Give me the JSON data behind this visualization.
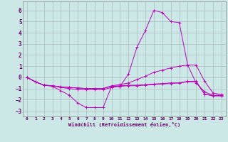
{
  "xlabel": "Windchill (Refroidissement éolien,°C)",
  "background_color": "#cce8e6",
  "grid_color": "#aabbbb",
  "line_color": "#bb00bb",
  "xlim": [
    -0.5,
    23.5
  ],
  "ylim": [
    -3.5,
    6.8
  ],
  "yticks": [
    -3,
    -2,
    -1,
    0,
    1,
    2,
    3,
    4,
    5,
    6
  ],
  "xticks": [
    0,
    1,
    2,
    3,
    4,
    5,
    6,
    7,
    8,
    9,
    10,
    11,
    12,
    13,
    14,
    15,
    16,
    17,
    18,
    19,
    20,
    21,
    22,
    23
  ],
  "series": [
    {
      "x": [
        0,
        1,
        2,
        3,
        4,
        5,
        6,
        7,
        8,
        9,
        10,
        11,
        12,
        13,
        14,
        15,
        16,
        17,
        18,
        19,
        20,
        21,
        22,
        23
      ],
      "y": [
        0.0,
        -0.4,
        -0.7,
        -0.8,
        -1.2,
        -1.6,
        -2.3,
        -2.7,
        -2.7,
        -2.7,
        -0.8,
        -0.8,
        0.3,
        2.7,
        4.2,
        6.0,
        5.8,
        5.0,
        4.9,
        1.1,
        -0.5,
        -1.3,
        -1.6,
        -1.6
      ]
    },
    {
      "x": [
        0,
        1,
        2,
        3,
        4,
        5,
        6,
        7,
        8,
        9,
        10,
        11,
        12,
        13,
        14,
        15,
        16,
        17,
        18,
        19,
        20,
        21,
        22,
        23
      ],
      "y": [
        0.0,
        -0.4,
        -0.7,
        -0.75,
        -0.85,
        -0.9,
        -0.95,
        -1.0,
        -1.0,
        -1.0,
        -0.75,
        -0.65,
        -0.5,
        -0.2,
        0.1,
        0.45,
        0.65,
        0.85,
        1.0,
        1.1,
        1.1,
        -0.35,
        -1.4,
        -1.55
      ]
    },
    {
      "x": [
        0,
        1,
        2,
        3,
        4,
        5,
        6,
        7,
        8,
        9,
        10,
        11,
        12,
        13,
        14,
        15,
        16,
        17,
        18,
        19,
        20,
        21,
        22,
        23
      ],
      "y": [
        0.0,
        -0.4,
        -0.7,
        -0.75,
        -0.85,
        -0.9,
        -0.95,
        -1.0,
        -1.0,
        -1.0,
        -0.8,
        -0.75,
        -0.7,
        -0.7,
        -0.65,
        -0.6,
        -0.55,
        -0.5,
        -0.5,
        -0.4,
        -0.4,
        -1.5,
        -1.65,
        -1.65
      ]
    },
    {
      "x": [
        0,
        1,
        2,
        3,
        4,
        5,
        6,
        7,
        8,
        9,
        10,
        11,
        12,
        13,
        14,
        15,
        16,
        17,
        18,
        19,
        20,
        21,
        22,
        23
      ],
      "y": [
        0.0,
        -0.4,
        -0.7,
        -0.75,
        -0.9,
        -1.0,
        -1.1,
        -1.1,
        -1.1,
        -1.1,
        -0.9,
        -0.8,
        -0.75,
        -0.75,
        -0.7,
        -0.65,
        -0.6,
        -0.55,
        -0.5,
        -0.35,
        -0.35,
        -1.5,
        -1.65,
        -1.65
      ]
    }
  ]
}
